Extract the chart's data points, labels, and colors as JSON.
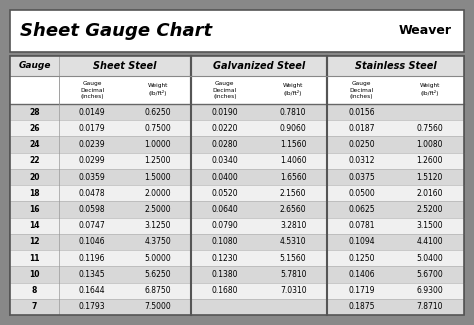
{
  "title": "Sheet Gauge Chart",
  "bg_outer": "#888888",
  "bg_white": "#ffffff",
  "bg_light_gray": "#e0e0e0",
  "bg_row_gray": "#d8d8d8",
  "bg_row_white": "#f0f0f0",
  "section_headers": [
    "Sheet Steel",
    "Galvanized Steel",
    "Stainless Steel"
  ],
  "gauges": [
    28,
    26,
    24,
    22,
    20,
    18,
    16,
    14,
    12,
    11,
    10,
    8,
    7
  ],
  "sheet_steel": [
    [
      "0.0149",
      "0.6250"
    ],
    [
      "0.0179",
      "0.7500"
    ],
    [
      "0.0239",
      "1.0000"
    ],
    [
      "0.0299",
      "1.2500"
    ],
    [
      "0.0359",
      "1.5000"
    ],
    [
      "0.0478",
      "2.0000"
    ],
    [
      "0.0598",
      "2.5000"
    ],
    [
      "0.0747",
      "3.1250"
    ],
    [
      "0.1046",
      "4.3750"
    ],
    [
      "0.1196",
      "5.0000"
    ],
    [
      "0.1345",
      "5.6250"
    ],
    [
      "0.1644",
      "6.8750"
    ],
    [
      "0.1793",
      "7.5000"
    ]
  ],
  "galvanized_steel": [
    [
      "0.0190",
      "0.7810"
    ],
    [
      "0.0220",
      "0.9060"
    ],
    [
      "0.0280",
      "1.1560"
    ],
    [
      "0.0340",
      "1.4060"
    ],
    [
      "0.0400",
      "1.6560"
    ],
    [
      "0.0520",
      "2.1560"
    ],
    [
      "0.0640",
      "2.6560"
    ],
    [
      "0.0790",
      "3.2810"
    ],
    [
      "0.1080",
      "4.5310"
    ],
    [
      "0.1230",
      "5.1560"
    ],
    [
      "0.1380",
      "5.7810"
    ],
    [
      "0.1680",
      "7.0310"
    ],
    [
      "",
      ""
    ]
  ],
  "stainless_steel": [
    [
      "0.0156",
      ""
    ],
    [
      "0.0187",
      "0.7560"
    ],
    [
      "0.0250",
      "1.0080"
    ],
    [
      "0.0312",
      "1.2600"
    ],
    [
      "0.0375",
      "1.5120"
    ],
    [
      "0.0500",
      "2.0160"
    ],
    [
      "0.0625",
      "2.5200"
    ],
    [
      "0.0781",
      "3.1500"
    ],
    [
      "0.1094",
      "4.4100"
    ],
    [
      "0.1250",
      "5.0400"
    ],
    [
      "0.1406",
      "5.6700"
    ],
    [
      "0.1719",
      "6.9300"
    ],
    [
      "0.1875",
      "7.8710"
    ]
  ]
}
